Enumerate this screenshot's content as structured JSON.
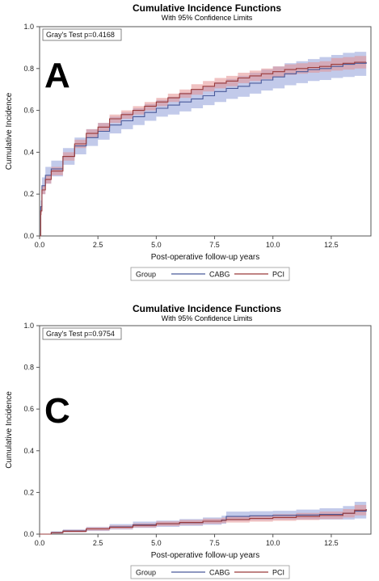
{
  "colors": {
    "cabg": "#4a5a9a",
    "cabg_band": "#8f9fd8",
    "pci": "#9a3b3b",
    "pci_band": "#e48f8f"
  },
  "chart_data": [
    {
      "type": "line",
      "panel_label": "A",
      "title": "Cumulative Incidence Functions",
      "subtitle": "With 95% Confidence Limits",
      "xlabel": "Post-operative follow-up years",
      "ylabel": "Cumulative Incidence",
      "xlim": [
        0,
        14.2
      ],
      "ylim": [
        0,
        1.0
      ],
      "xticks": [
        "0.0",
        "2.5",
        "5.0",
        "7.5",
        "10.0",
        "12.5"
      ],
      "yticks": [
        "0.0",
        "0.2",
        "0.4",
        "0.6",
        "0.8",
        "1.0"
      ],
      "annotation": "Gray's Test p=0.4168",
      "legend": {
        "title": "Group",
        "position": "bottom",
        "entries": [
          "CABG",
          "PCI"
        ]
      },
      "series": [
        {
          "name": "CABG",
          "x": [
            0,
            0.05,
            0.1,
            0.25,
            0.5,
            1,
            1.5,
            2,
            2.5,
            3,
            3.5,
            4,
            4.5,
            5,
            5.5,
            6,
            6.5,
            7,
            7.5,
            8,
            8.5,
            9,
            9.5,
            10,
            10.5,
            11,
            11.5,
            12,
            12.5,
            13,
            13.5,
            14
          ],
          "y": [
            0,
            0.14,
            0.24,
            0.29,
            0.32,
            0.38,
            0.43,
            0.47,
            0.5,
            0.53,
            0.55,
            0.57,
            0.59,
            0.61,
            0.625,
            0.64,
            0.655,
            0.67,
            0.69,
            0.705,
            0.715,
            0.73,
            0.745,
            0.76,
            0.775,
            0.785,
            0.795,
            0.8,
            0.81,
            0.82,
            0.825,
            0.83
          ],
          "lower": [
            0,
            0.11,
            0.2,
            0.25,
            0.285,
            0.34,
            0.39,
            0.43,
            0.46,
            0.49,
            0.51,
            0.53,
            0.55,
            0.57,
            0.58,
            0.595,
            0.61,
            0.625,
            0.64,
            0.655,
            0.665,
            0.68,
            0.695,
            0.705,
            0.72,
            0.73,
            0.74,
            0.745,
            0.755,
            0.76,
            0.765,
            0.77
          ],
          "upper": [
            0,
            0.17,
            0.28,
            0.33,
            0.36,
            0.42,
            0.47,
            0.51,
            0.54,
            0.57,
            0.59,
            0.61,
            0.63,
            0.65,
            0.665,
            0.685,
            0.7,
            0.715,
            0.735,
            0.75,
            0.765,
            0.78,
            0.795,
            0.81,
            0.825,
            0.835,
            0.845,
            0.855,
            0.865,
            0.875,
            0.88,
            0.885
          ]
        },
        {
          "name": "PCI",
          "x": [
            0,
            0.05,
            0.1,
            0.25,
            0.5,
            1,
            1.5,
            2,
            2.5,
            3,
            3.5,
            4,
            4.5,
            5,
            5.5,
            6,
            6.5,
            7,
            7.5,
            8,
            8.5,
            9,
            9.5,
            10,
            10.5,
            11,
            11.5,
            12,
            12.5,
            13,
            13.5,
            14
          ],
          "y": [
            0,
            0.12,
            0.22,
            0.27,
            0.31,
            0.38,
            0.44,
            0.49,
            0.52,
            0.56,
            0.58,
            0.6,
            0.62,
            0.64,
            0.66,
            0.68,
            0.7,
            0.715,
            0.73,
            0.74,
            0.755,
            0.765,
            0.775,
            0.785,
            0.795,
            0.8,
            0.805,
            0.81,
            0.82,
            0.825,
            0.83,
            0.83
          ],
          "lower": [
            0,
            0.1,
            0.2,
            0.25,
            0.29,
            0.36,
            0.42,
            0.47,
            0.5,
            0.54,
            0.56,
            0.58,
            0.6,
            0.62,
            0.64,
            0.66,
            0.675,
            0.69,
            0.705,
            0.715,
            0.73,
            0.74,
            0.75,
            0.76,
            0.77,
            0.775,
            0.78,
            0.785,
            0.79,
            0.795,
            0.8,
            0.8
          ],
          "upper": [
            0,
            0.14,
            0.24,
            0.29,
            0.33,
            0.4,
            0.46,
            0.51,
            0.54,
            0.58,
            0.6,
            0.62,
            0.64,
            0.66,
            0.68,
            0.7,
            0.725,
            0.74,
            0.755,
            0.765,
            0.78,
            0.79,
            0.8,
            0.81,
            0.82,
            0.825,
            0.83,
            0.835,
            0.85,
            0.855,
            0.86,
            0.86
          ]
        }
      ]
    },
    {
      "type": "line",
      "panel_label": "C",
      "title": "Cumulative Incidence Functions",
      "subtitle": "With 95% Confidence Limits",
      "xlabel": "Post-operative follow-up years",
      "ylabel": "Cumulative Incidence",
      "xlim": [
        0,
        14.2
      ],
      "ylim": [
        0,
        1.0
      ],
      "xticks": [
        "0.0",
        "2.5",
        "5.0",
        "7.5",
        "10.0",
        "12.5"
      ],
      "yticks": [
        "0.0",
        "0.2",
        "0.4",
        "0.6",
        "0.8",
        "1.0"
      ],
      "annotation": "Gray's Test p=0.9754",
      "legend": {
        "title": "Group",
        "position": "bottom",
        "entries": [
          "CABG",
          "PCI"
        ]
      },
      "series": [
        {
          "name": "CABG",
          "x": [
            0,
            0.5,
            1,
            2,
            3,
            4,
            5,
            6,
            7,
            7.8,
            8,
            9,
            10,
            11,
            12,
            13,
            13.5,
            14
          ],
          "y": [
            0,
            0.008,
            0.015,
            0.025,
            0.035,
            0.045,
            0.05,
            0.055,
            0.062,
            0.068,
            0.085,
            0.088,
            0.09,
            0.092,
            0.095,
            0.1,
            0.11,
            0.12
          ],
          "lower": [
            0,
            0.003,
            0.008,
            0.015,
            0.022,
            0.03,
            0.035,
            0.04,
            0.045,
            0.05,
            0.065,
            0.068,
            0.07,
            0.07,
            0.07,
            0.07,
            0.075,
            0.08
          ],
          "upper": [
            0,
            0.013,
            0.022,
            0.035,
            0.048,
            0.06,
            0.065,
            0.072,
            0.08,
            0.088,
            0.108,
            0.11,
            0.112,
            0.118,
            0.124,
            0.135,
            0.155,
            0.17
          ]
        },
        {
          "name": "PCI",
          "x": [
            0,
            0.5,
            1,
            2,
            3,
            4,
            5,
            6,
            7,
            7.8,
            8,
            9,
            10,
            11,
            12,
            13,
            13.5,
            14
          ],
          "y": [
            0,
            0.007,
            0.014,
            0.025,
            0.033,
            0.042,
            0.05,
            0.056,
            0.062,
            0.066,
            0.07,
            0.075,
            0.08,
            0.085,
            0.09,
            0.1,
            0.115,
            0.12
          ],
          "lower": [
            0,
            0.003,
            0.008,
            0.017,
            0.024,
            0.032,
            0.039,
            0.044,
            0.05,
            0.053,
            0.056,
            0.06,
            0.064,
            0.068,
            0.072,
            0.08,
            0.09,
            0.095
          ],
          "upper": [
            0,
            0.011,
            0.02,
            0.033,
            0.042,
            0.052,
            0.061,
            0.068,
            0.074,
            0.079,
            0.084,
            0.09,
            0.096,
            0.102,
            0.108,
            0.12,
            0.14,
            0.145
          ]
        }
      ]
    }
  ]
}
